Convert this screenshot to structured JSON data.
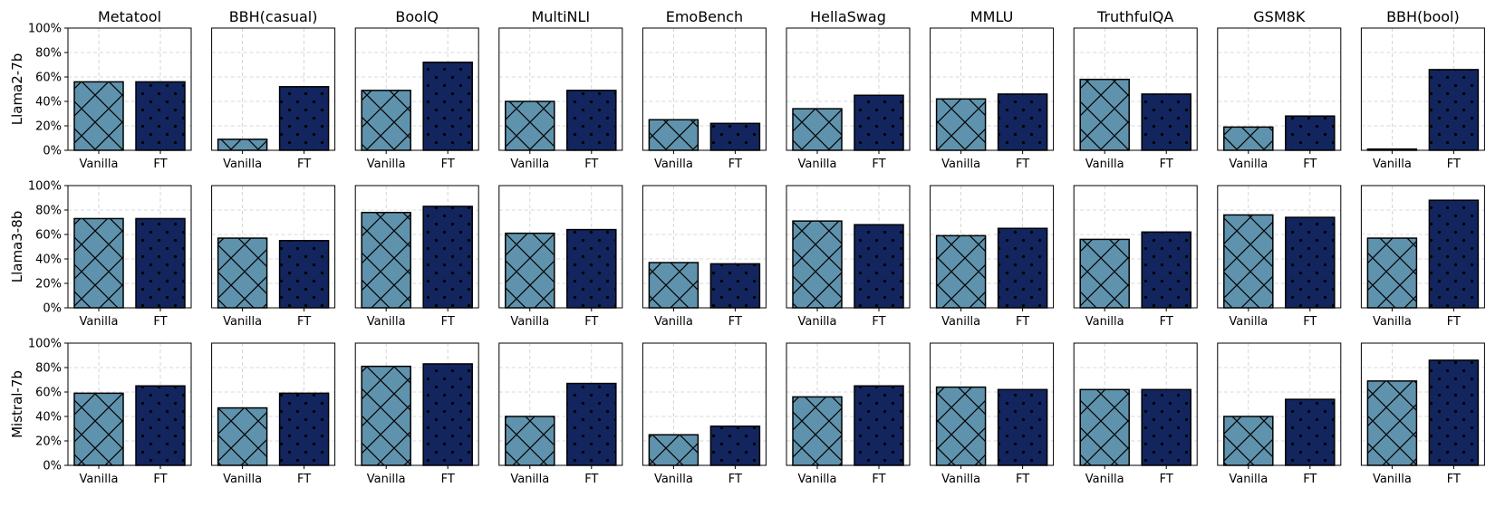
{
  "chart_data": {
    "type": "bar",
    "grid": true,
    "ylim": [
      0,
      100
    ],
    "yticks": [
      0,
      20,
      40,
      60,
      80,
      100
    ],
    "ytick_labels": [
      "0%",
      "20%",
      "40%",
      "60%",
      "80%",
      "100%"
    ],
    "categories": [
      "Vanilla",
      "FT"
    ],
    "colors": {
      "Vanilla": "#5f93ad",
      "FT": "#13255e"
    },
    "datasets": [
      "Metatool",
      "BBH(casual)",
      "BoolQ",
      "MultiNLI",
      "EmoBench",
      "HellaSwag",
      "MMLU",
      "TruthfulQA",
      "GSM8K",
      "BBH(bool)"
    ],
    "rows": [
      {
        "model": "Llama2-7b",
        "values": [
          [
            56,
            56
          ],
          [
            9,
            52
          ],
          [
            49,
            72
          ],
          [
            40,
            49
          ],
          [
            25,
            22
          ],
          [
            34,
            45
          ],
          [
            42,
            46
          ],
          [
            58,
            46
          ],
          [
            19,
            28
          ],
          [
            1,
            66
          ]
        ]
      },
      {
        "model": "Llama3-8b",
        "values": [
          [
            73,
            73
          ],
          [
            57,
            55
          ],
          [
            78,
            83
          ],
          [
            61,
            64
          ],
          [
            37,
            36
          ],
          [
            71,
            68
          ],
          [
            59,
            65
          ],
          [
            56,
            62
          ],
          [
            76,
            74
          ],
          [
            57,
            88
          ]
        ]
      },
      {
        "model": "Mistral-7b",
        "values": [
          [
            59,
            65
          ],
          [
            47,
            59
          ],
          [
            81,
            83
          ],
          [
            40,
            67
          ],
          [
            25,
            32
          ],
          [
            56,
            65
          ],
          [
            64,
            62
          ],
          [
            62,
            62
          ],
          [
            40,
            54
          ],
          [
            69,
            86
          ]
        ]
      }
    ]
  }
}
